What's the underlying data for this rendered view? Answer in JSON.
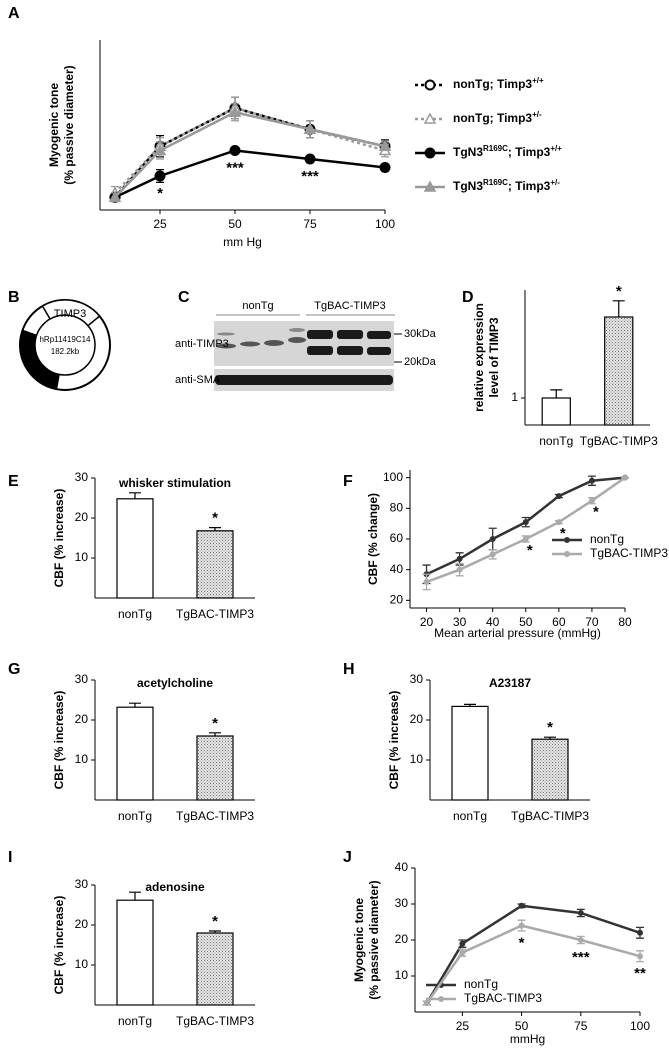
{
  "chart_data": [
    {
      "panel": "A",
      "type": "line",
      "xlabel": "mm Hg",
      "ylabel": [
        "Myogenic tone",
        "(% passive diameter)"
      ],
      "x": [
        10,
        25,
        50,
        75,
        100
      ],
      "xlim": [
        5,
        100
      ],
      "xticks": [
        25,
        50,
        75,
        100
      ],
      "ylim": [
        0,
        40
      ],
      "series": [
        {
          "name": [
            "nonTg; Timp3",
            "+/+"
          ],
          "color": "#000000",
          "dash": true,
          "marker": "circle",
          "filled": false,
          "values": [
            3,
            15,
            24,
            19,
            15
          ],
          "errors": [
            1,
            2.5,
            2.5,
            2,
            1.5
          ]
        },
        {
          "name": [
            "nonTg; Timp3",
            "+/-"
          ],
          "color": "#999999",
          "dash": true,
          "marker": "triangle",
          "filled": false,
          "values": [
            4,
            15,
            24,
            19,
            14
          ],
          "errors": [
            1.5,
            2,
            2.5,
            2,
            1.5
          ]
        },
        {
          "name": [
            "TgN3",
            "R169C",
            "; Timp3",
            "+/+"
          ],
          "color": "#000000",
          "dash": false,
          "marker": "circle",
          "filled": true,
          "values": [
            3,
            8,
            14,
            12,
            10
          ],
          "errors": [
            0.5,
            1.5,
            0.5,
            0.5,
            0.5
          ]
        },
        {
          "name": [
            "TgN3",
            "R169C",
            "; Timp3",
            "+/-"
          ],
          "color": "#999999",
          "dash": false,
          "marker": "triangle",
          "filled": true,
          "values": [
            3,
            14,
            23,
            19,
            15
          ],
          "errors": [
            1,
            2,
            2,
            2,
            1
          ]
        }
      ],
      "significance": [
        null,
        "*",
        "***",
        "***",
        null
      ]
    },
    {
      "panel": "D",
      "type": "bar",
      "ylabel": [
        "relative expression",
        "level of TIMP3"
      ],
      "categories": [
        "nonTg",
        "TgBAC-TIMP3"
      ],
      "values": [
        1,
        4
      ],
      "errors": [
        0.3,
        0.6
      ],
      "fills": [
        "plain",
        "hatched"
      ],
      "ylim": [
        0,
        5
      ],
      "yticks": [
        1
      ],
      "significance": [
        null,
        "*"
      ]
    },
    {
      "panel": "E",
      "type": "bar",
      "title": "whisker stimulation",
      "ylabel": [
        "CBF (% increase)"
      ],
      "categories": [
        "nonTg",
        "TgBAC-TIMP3"
      ],
      "values": [
        24.8,
        16.8
      ],
      "errors": [
        1.5,
        0.8
      ],
      "fills": [
        "plain",
        "hatched"
      ],
      "ylim": [
        0,
        30
      ],
      "yticks": [
        10,
        20,
        30
      ],
      "significance": [
        null,
        "*"
      ]
    },
    {
      "panel": "F",
      "type": "line",
      "xlabel": "Mean arterial pressure (mmHg)",
      "ylabel": [
        "CBF (% change)"
      ],
      "x": [
        20,
        30,
        40,
        50,
        60,
        70,
        80
      ],
      "xlim": [
        15,
        80
      ],
      "xticks": [
        20,
        30,
        40,
        50,
        60,
        70,
        80
      ],
      "ylim": [
        15,
        105
      ],
      "yticks": [
        20,
        40,
        60,
        80,
        100
      ],
      "series": [
        {
          "name": "nonTg",
          "color": "#333333",
          "dash": false,
          "marker": "dot",
          "filled": true,
          "values": [
            37,
            47,
            60,
            71,
            88,
            98,
            100
          ],
          "errors": [
            6,
            4,
            7,
            3,
            1,
            3,
            0
          ]
        },
        {
          "name": "TgBAC-TIMP3",
          "color": "#aaaaaa",
          "dash": false,
          "marker": "dot",
          "filled": true,
          "values": [
            32,
            40,
            50,
            60,
            71,
            85,
            100
          ],
          "errors": [
            5,
            4,
            3,
            2,
            1,
            2,
            0
          ]
        }
      ],
      "significance": [
        null,
        null,
        null,
        "*",
        "*",
        "*",
        null
      ]
    },
    {
      "panel": "G",
      "type": "bar",
      "title": "acetylcholine",
      "ylabel": [
        "CBF (% increase)"
      ],
      "categories": [
        "nonTg",
        "TgBAC-TIMP3"
      ],
      "values": [
        23.2,
        16
      ],
      "errors": [
        1,
        0.8
      ],
      "fills": [
        "plain",
        "hatched"
      ],
      "ylim": [
        0,
        30
      ],
      "yticks": [
        10,
        20,
        30
      ],
      "significance": [
        null,
        "*"
      ]
    },
    {
      "panel": "H",
      "type": "bar",
      "title": "A23187",
      "ylabel": [
        "CBF (% increase)"
      ],
      "categories": [
        "nonTg",
        "TgBAC-TIMP3"
      ],
      "values": [
        23.4,
        15.2
      ],
      "errors": [
        0.5,
        0.5
      ],
      "fills": [
        "plain",
        "hatched"
      ],
      "ylim": [
        0,
        30
      ],
      "yticks": [
        10,
        20,
        30
      ],
      "significance": [
        null,
        "*"
      ]
    },
    {
      "panel": "I",
      "type": "bar",
      "title": "adenosine",
      "ylabel": [
        "CBF (% increase)"
      ],
      "categories": [
        "nonTg",
        "TgBAC-TIMP3"
      ],
      "values": [
        26.2,
        18
      ],
      "errors": [
        2,
        0.5
      ],
      "fills": [
        "plain",
        "hatched"
      ],
      "ylim": [
        0,
        30
      ],
      "yticks": [
        10,
        20,
        30
      ],
      "significance": [
        null,
        "*"
      ]
    },
    {
      "panel": "J",
      "type": "line",
      "xlabel": "mmHg",
      "ylabel": [
        "Myogenic tone",
        "(% passive diameter)"
      ],
      "x": [
        10,
        25,
        50,
        75,
        100
      ],
      "xlim": [
        5,
        100
      ],
      "xticks": [
        25,
        50,
        75,
        100
      ],
      "ylim": [
        0,
        40
      ],
      "yticks": [
        10,
        20,
        30,
        40
      ],
      "series": [
        {
          "name": "nonTg",
          "color": "#333333",
          "dash": false,
          "marker": "dot",
          "filled": true,
          "values": [
            2.5,
            19,
            29.5,
            27.5,
            22
          ],
          "errors": [
            0.5,
            1,
            0.5,
            1,
            1.5
          ]
        },
        {
          "name": "TgBAC-TIMP3",
          "color": "#aaaaaa",
          "dash": false,
          "marker": "dot",
          "filled": true,
          "values": [
            2.5,
            16.5,
            24,
            20,
            15.5
          ],
          "errors": [
            0.5,
            1,
            1.5,
            1,
            1.5
          ]
        }
      ],
      "significance": [
        null,
        null,
        "*",
        "***",
        "**"
      ]
    }
  ],
  "construct": {
    "panel": "B",
    "gene": "TIMP3",
    "clone": "hRp11419C14",
    "size": "182.2kb"
  },
  "blot": {
    "panel": "C",
    "groups": [
      "nonTg",
      "TgBAC-TIMP3"
    ],
    "rows": [
      "anti-TIMP3",
      "anti-SMA"
    ],
    "markers": [
      "30kDa",
      "20kDa"
    ]
  }
}
